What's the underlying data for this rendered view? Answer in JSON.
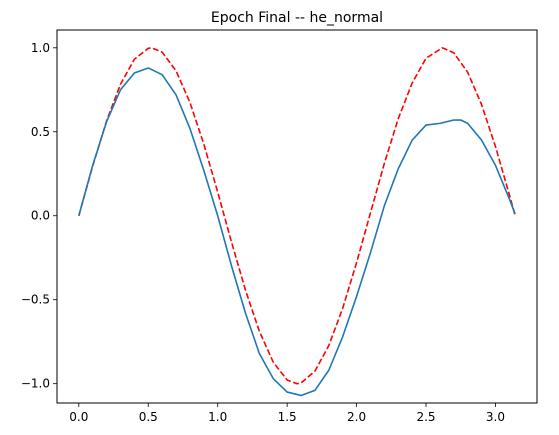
{
  "chart_data": {
    "type": "line",
    "title": "Epoch Final -- he_normal",
    "xlabel": "",
    "ylabel": "",
    "xlim": [
      -0.157,
      3.299
    ],
    "ylim": [
      -1.115,
      1.106
    ],
    "grid": false,
    "x_ticks": [
      0.0,
      0.5,
      1.0,
      1.5,
      2.0,
      2.5,
      3.0
    ],
    "x_tick_labels": [
      "0.0",
      "0.5",
      "1.0",
      "1.5",
      "2.0",
      "2.5",
      "3.0"
    ],
    "y_ticks": [
      -1.0,
      -0.5,
      0.0,
      0.5,
      1.0
    ],
    "y_tick_labels": [
      "−1.0",
      "−0.5",
      "0.0",
      "0.5",
      "1.0"
    ],
    "series": [
      {
        "color": "#ff0000",
        "style": "dashed",
        "x": [
          0.0,
          0.1,
          0.2,
          0.3,
          0.4,
          0.5,
          0.524,
          0.6,
          0.7,
          0.8,
          0.9,
          1.0,
          1.1,
          1.2,
          1.3,
          1.4,
          1.5,
          1.571,
          1.6,
          1.7,
          1.8,
          1.9,
          2.0,
          2.1,
          2.2,
          2.3,
          2.4,
          2.5,
          2.618,
          2.7,
          2.8,
          2.9,
          3.0,
          3.1,
          3.142
        ],
        "y": [
          0.0,
          0.296,
          0.565,
          0.783,
          0.932,
          0.997,
          1.0,
          0.974,
          0.863,
          0.675,
          0.427,
          0.141,
          -0.158,
          -0.443,
          -0.688,
          -0.872,
          -0.978,
          -1.0,
          -0.996,
          -0.925,
          -0.773,
          -0.551,
          -0.279,
          0.017,
          0.312,
          0.578,
          0.79,
          0.938,
          1.0,
          0.97,
          0.854,
          0.662,
          0.412,
          0.125,
          0.0
        ]
      },
      {
        "color": "#1f77b4",
        "style": "solid",
        "x": [
          0.0,
          0.1,
          0.2,
          0.3,
          0.4,
          0.5,
          0.6,
          0.7,
          0.8,
          0.9,
          1.0,
          1.1,
          1.2,
          1.3,
          1.4,
          1.5,
          1.6,
          1.7,
          1.8,
          1.9,
          2.0,
          2.1,
          2.2,
          2.3,
          2.4,
          2.5,
          2.6,
          2.7,
          2.75,
          2.8,
          2.9,
          3.0,
          3.1,
          3.142
        ],
        "y": [
          0.0,
          0.3,
          0.56,
          0.75,
          0.85,
          0.88,
          0.84,
          0.72,
          0.52,
          0.27,
          0.0,
          -0.3,
          -0.58,
          -0.82,
          -0.97,
          -1.05,
          -1.07,
          -1.04,
          -0.92,
          -0.72,
          -0.48,
          -0.22,
          0.06,
          0.28,
          0.45,
          0.54,
          0.55,
          0.57,
          0.57,
          0.55,
          0.45,
          0.3,
          0.1,
          0.01
        ]
      }
    ]
  }
}
